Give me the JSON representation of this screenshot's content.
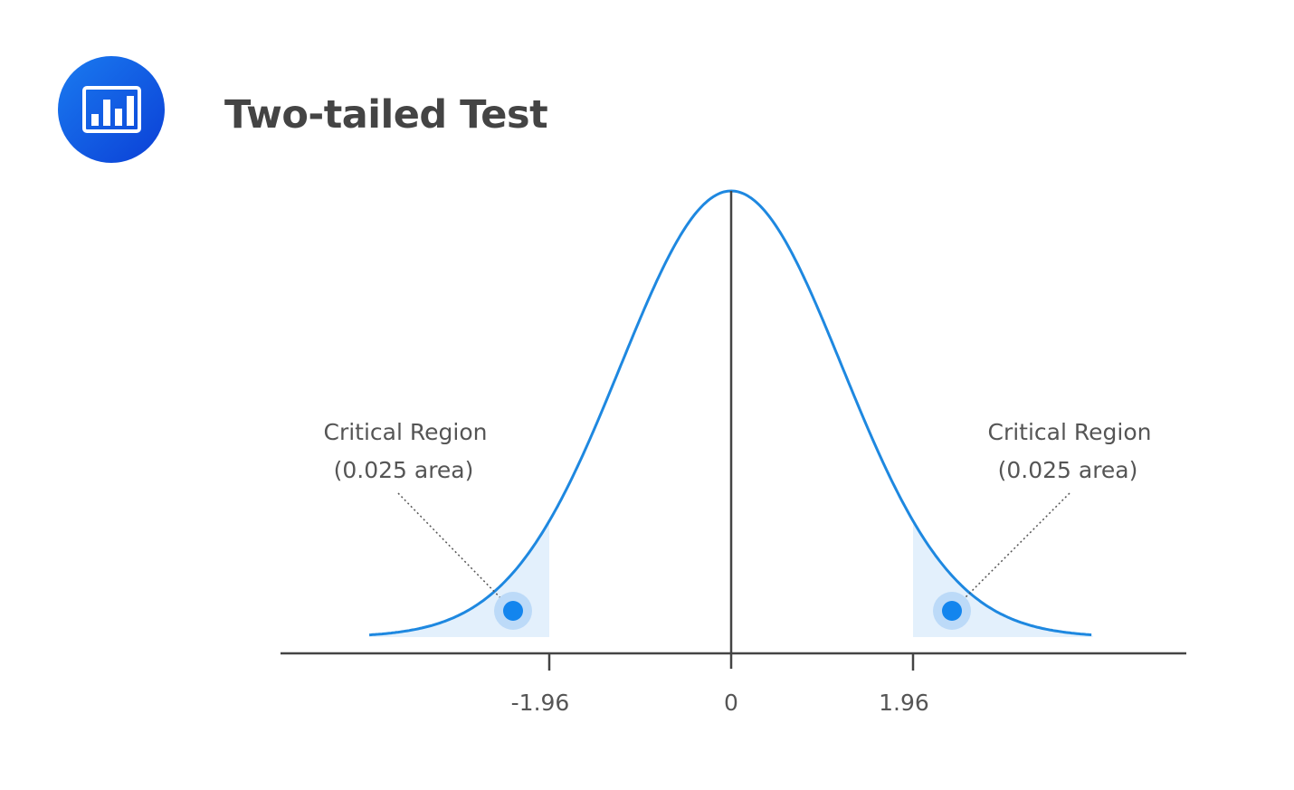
{
  "header": {
    "title": "Two-tailed Test",
    "icon": "bar-chart-icon"
  },
  "chart_data": {
    "type": "area",
    "distribution": "standard normal",
    "xlim": [
      -3.9,
      3.9
    ],
    "critical_values": [
      -1.96,
      1.96
    ],
    "tick_labels": [
      "-1.96",
      "0",
      "1.96"
    ],
    "tick_values": [
      -1.96,
      0,
      1.96
    ],
    "annotations": [
      {
        "line1": "Critical Region",
        "line2": "(0.025 area)",
        "side": "left"
      },
      {
        "line1": "Critical Region",
        "line2": "(0.025 area)",
        "side": "right"
      }
    ],
    "colors": {
      "curve": "#1e88e0",
      "shade": "#e3f0fc",
      "dot": "#1385ee",
      "axis": "#444444"
    }
  }
}
